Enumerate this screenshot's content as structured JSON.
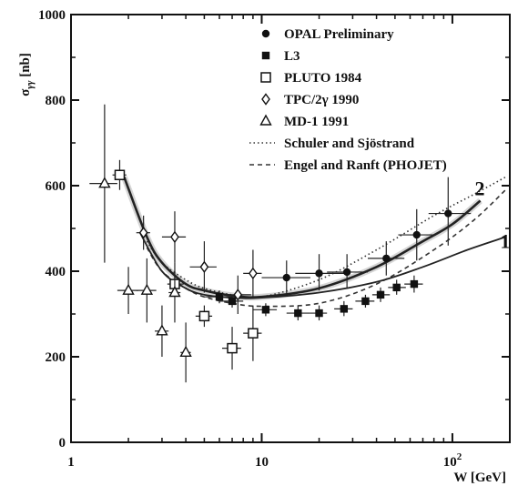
{
  "chart_data": {
    "type": "scatter",
    "ylabel_main": "σ",
    "ylabel_sub": "γγ",
    "ylabel_unit": "[nb]",
    "xlabel": "W [GeV]",
    "xscale": "log",
    "xlim": [
      1,
      200
    ],
    "ylim": [
      0,
      1000
    ],
    "x_ticks": [
      {
        "value": 1,
        "label": "1"
      },
      {
        "value": 10,
        "label": "10"
      },
      {
        "value": 100,
        "label": "10",
        "sup": "2"
      }
    ],
    "y_ticks": [
      {
        "value": 0,
        "label": "0"
      },
      {
        "value": 200,
        "label": "200"
      },
      {
        "value": 400,
        "label": "400"
      },
      {
        "value": 600,
        "label": "600"
      },
      {
        "value": 800,
        "label": "800"
      },
      {
        "value": 1000,
        "label": "1000"
      }
    ],
    "series": [
      {
        "name": "OPAL Preliminary",
        "marker": "filled-circle",
        "points": [
          {
            "x": 13.5,
            "y": 385,
            "xerr": [
              10,
              18
            ],
            "yerr": [
              345,
              425
            ]
          },
          {
            "x": 20,
            "y": 395,
            "xerr": [
              15,
              27
            ],
            "yerr": [
              355,
              440
            ]
          },
          {
            "x": 28,
            "y": 398,
            "xerr": [
              22,
              36
            ],
            "yerr": [
              360,
              440
            ]
          },
          {
            "x": 45,
            "y": 430,
            "xerr": [
              36,
              56
            ],
            "yerr": [
              390,
              470
            ]
          },
          {
            "x": 65,
            "y": 485,
            "xerr": [
              52,
              82
            ],
            "yerr": [
              425,
              545
            ]
          },
          {
            "x": 95,
            "y": 535,
            "xerr": [
              75,
              125
            ],
            "yerr": [
              460,
              620
            ]
          }
        ]
      },
      {
        "name": "L3",
        "marker": "filled-square",
        "points": [
          {
            "x": 6,
            "y": 340,
            "xerr": [
              5,
              7
            ],
            "yerr": [
              325,
              355
            ]
          },
          {
            "x": 7,
            "y": 330,
            "xerr": [
              6,
              8
            ],
            "yerr": [
              315,
              345
            ]
          },
          {
            "x": 10.5,
            "y": 310,
            "xerr": [
              9,
              12
            ],
            "yerr": [
              295,
              325
            ]
          },
          {
            "x": 15.5,
            "y": 302,
            "xerr": [
              13.5,
              18
            ],
            "yerr": [
              285,
              320
            ]
          },
          {
            "x": 20,
            "y": 302,
            "xerr": [
              18,
              22
            ],
            "yerr": [
              285,
              320
            ]
          },
          {
            "x": 27,
            "y": 312,
            "xerr": [
              24,
              30
            ],
            "yerr": [
              295,
              330
            ]
          },
          {
            "x": 35,
            "y": 330,
            "xerr": [
              31,
              39
            ],
            "yerr": [
              315,
              345
            ]
          },
          {
            "x": 42,
            "y": 345,
            "xerr": [
              38,
              47
            ],
            "yerr": [
              328,
              362
            ]
          },
          {
            "x": 51,
            "y": 362,
            "xerr": [
              46,
              57
            ],
            "yerr": [
              345,
              380
            ]
          },
          {
            "x": 63,
            "y": 370,
            "xerr": [
              56,
              70
            ],
            "yerr": [
              350,
              390
            ]
          }
        ]
      },
      {
        "name": "PLUTO 1984",
        "marker": "open-square",
        "points": [
          {
            "x": 1.8,
            "y": 625,
            "xerr": [
              1.65,
              1.95
            ],
            "yerr": [
              590,
              660
            ]
          },
          {
            "x": 3.5,
            "y": 370,
            "xerr": [
              3.2,
              3.9
            ],
            "yerr": [
              340,
              400
            ]
          },
          {
            "x": 5,
            "y": 295,
            "xerr": [
              4.5,
              5.5
            ],
            "yerr": [
              270,
              320
            ]
          },
          {
            "x": 7,
            "y": 220,
            "xerr": [
              6.2,
              7.8
            ],
            "yerr": [
              170,
              270
            ]
          },
          {
            "x": 9,
            "y": 255,
            "xerr": [
              8,
              10
            ],
            "yerr": [
              190,
              320
            ]
          }
        ]
      },
      {
        "name": "TPC/2γ 1990",
        "marker": "open-diamond",
        "points": [
          {
            "x": 2.4,
            "y": 490,
            "xerr": [
              2.2,
              2.6
            ],
            "yerr": [
              450,
              530
            ]
          },
          {
            "x": 3.5,
            "y": 480,
            "xerr": [
              3,
              4
            ],
            "yerr": [
              420,
              540
            ]
          },
          {
            "x": 5,
            "y": 410,
            "xerr": [
              4.2,
              5.8
            ],
            "yerr": [
              350,
              470
            ]
          },
          {
            "x": 7.5,
            "y": 345,
            "xerr": [
              6.2,
              8.8
            ],
            "yerr": [
              300,
              390
            ]
          },
          {
            "x": 9,
            "y": 395,
            "xerr": [
              8,
              10
            ],
            "yerr": [
              340,
              450
            ]
          }
        ]
      },
      {
        "name": "MD-1 1991",
        "marker": "open-triangle",
        "points": [
          {
            "x": 1.5,
            "y": 605,
            "xerr": [
              1.25,
              1.75
            ],
            "yerr": [
              420,
              790
            ]
          },
          {
            "x": 2,
            "y": 355,
            "xerr": [
              1.75,
              2.25
            ],
            "yerr": [
              300,
              410
            ]
          },
          {
            "x": 2.5,
            "y": 355,
            "xerr": [
              2.2,
              2.8
            ],
            "yerr": [
              280,
              430
            ]
          },
          {
            "x": 3,
            "y": 260,
            "xerr": [
              2.75,
              3.25
            ],
            "yerr": [
              200,
              320
            ]
          },
          {
            "x": 3.5,
            "y": 350,
            "xerr": [
              3.25,
              3.75
            ],
            "yerr": [
              280,
              420
            ]
          },
          {
            "x": 4,
            "y": 210,
            "xerr": [
              3.75,
              4.25
            ],
            "yerr": [
              140,
              280
            ]
          }
        ]
      }
    ],
    "curves": [
      {
        "name": "Schuler and Sjöstrand",
        "style": "dotted",
        "points": [
          [
            2.5,
            470
          ],
          [
            3,
            420
          ],
          [
            4,
            380
          ],
          [
            5,
            360
          ],
          [
            7,
            345
          ],
          [
            10,
            340
          ],
          [
            20,
            380
          ],
          [
            40,
            450
          ],
          [
            80,
            530
          ],
          [
            130,
            580
          ],
          [
            190,
            620
          ]
        ]
      },
      {
        "name": "Engel and Ranft (PHOJET)",
        "style": "dashed",
        "points": [
          [
            2.5,
            455
          ],
          [
            3,
            400
          ],
          [
            4,
            360
          ],
          [
            5,
            340
          ],
          [
            7,
            325
          ],
          [
            10,
            318
          ],
          [
            20,
            325
          ],
          [
            40,
            370
          ],
          [
            80,
            450
          ],
          [
            130,
            520
          ],
          [
            190,
            590
          ]
        ]
      },
      {
        "name": "",
        "label": "1",
        "style": "solid",
        "points": [
          [
            2.3,
            490
          ],
          [
            3,
            400
          ],
          [
            4,
            360
          ],
          [
            5,
            345
          ],
          [
            7,
            338
          ],
          [
            10,
            338
          ],
          [
            20,
            350
          ],
          [
            40,
            375
          ],
          [
            70,
            410
          ],
          [
            120,
            450
          ],
          [
            190,
            480
          ]
        ]
      },
      {
        "name": "",
        "label": "2",
        "style": "solid-thick",
        "points": [
          [
            1.9,
            620
          ],
          [
            2.5,
            480
          ],
          [
            3,
            420
          ],
          [
            4,
            370
          ],
          [
            5,
            355
          ],
          [
            7,
            343
          ],
          [
            10,
            340
          ],
          [
            20,
            360
          ],
          [
            40,
            410
          ],
          [
            70,
            470
          ],
          [
            100,
            510
          ],
          [
            140,
            565
          ]
        ]
      }
    ],
    "grid": false,
    "legend_position": "top-right"
  }
}
